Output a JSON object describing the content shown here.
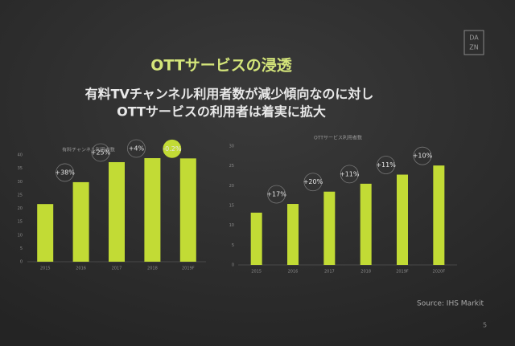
{
  "slide": {
    "title": "OTTサービスの浸透",
    "subtitle": [
      "有料TVチャンネル利用者数が減少傾向なのに対し",
      "OTTサービスの利用者は着実に拡大"
    ],
    "logo": [
      "DA",
      "ZN"
    ],
    "source": "Source: IHS Markit",
    "page": "5"
  },
  "chart_data": [
    {
      "type": "bar",
      "title": "有料チャンネル利用者数",
      "categories": [
        "2015",
        "2016",
        "2017",
        "2018",
        "2019F"
      ],
      "values": [
        21.6,
        29.8,
        37.3,
        38.8,
        38.7
      ],
      "color": "#c2db35",
      "growth_labels": [
        null,
        "+38%",
        "+25%",
        "+4%",
        "-0.2%"
      ],
      "label_fill": [
        null,
        null,
        null,
        null,
        "#c2db35"
      ],
      "ylim": [
        0,
        40
      ],
      "yticks": [
        0,
        5,
        10,
        15,
        20,
        25,
        30,
        35,
        40
      ],
      "grid": false
    },
    {
      "type": "bar",
      "title": "OTTサービス利用者数",
      "categories": [
        "2015",
        "2016",
        "2017",
        "2018",
        "2019F",
        "2020F"
      ],
      "values": [
        13.2,
        15.4,
        18.5,
        20.5,
        22.8,
        25.1
      ],
      "color": "#c2db35",
      "growth_labels": [
        null,
        "+17%",
        "+20%",
        "+11%",
        "+11%",
        "+10%"
      ],
      "label_fill": [
        null,
        null,
        null,
        null,
        null,
        null
      ],
      "ylim": [
        0,
        30
      ],
      "yticks": [
        0,
        5,
        10,
        15,
        20,
        25,
        30
      ],
      "grid": false
    }
  ]
}
